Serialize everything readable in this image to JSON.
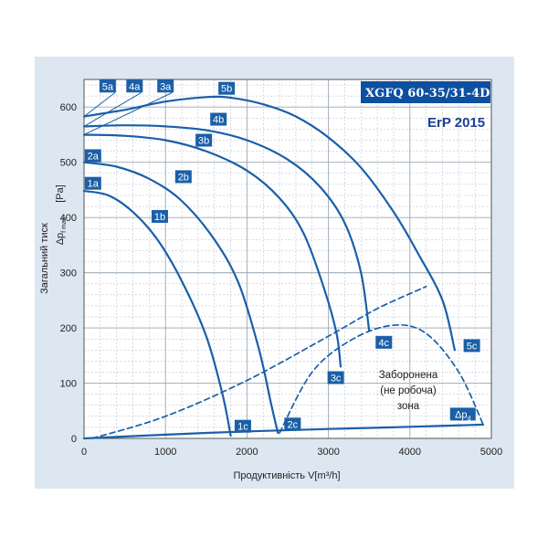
{
  "chart_data": {
    "type": "line",
    "title": "XGFQ 60-35/31-4D",
    "subtitle": "ErP 2015",
    "xlabel": "Продуктивність V[m³/h]",
    "ylabel": "Загальний тиск",
    "ylabel2": "[Pa]",
    "ylabel3_main": "Δp",
    "ylabel3_sub": "f max",
    "xlim": [
      0,
      5000
    ],
    "ylim": [
      0,
      650
    ],
    "x_ticks": [
      0,
      1000,
      2000,
      3000,
      4000,
      5000
    ],
    "y_ticks": [
      0,
      100,
      200,
      300,
      400,
      500,
      600
    ],
    "grid": true,
    "colors": {
      "curve": "#1a5fa8",
      "label_bg": "#1a5fa8",
      "title_bg": "#0d4fa0",
      "panel_bg": "#dde7f2",
      "grid": "#9aa7b5"
    },
    "series": [
      {
        "name": "1",
        "points": [
          [
            0,
            448
          ],
          [
            300,
            440
          ],
          [
            600,
            410
          ],
          [
            900,
            360
          ],
          [
            1200,
            285
          ],
          [
            1500,
            185
          ],
          [
            1700,
            80
          ],
          [
            1800,
            5
          ]
        ]
      },
      {
        "name": "2",
        "points": [
          [
            0,
            500
          ],
          [
            400,
            492
          ],
          [
            800,
            470
          ],
          [
            1200,
            430
          ],
          [
            1600,
            360
          ],
          [
            1900,
            280
          ],
          [
            2150,
            160
          ],
          [
            2300,
            60
          ],
          [
            2380,
            10
          ]
        ]
      },
      {
        "name": "3",
        "points": [
          [
            0,
            550
          ],
          [
            500,
            548
          ],
          [
            1000,
            540
          ],
          [
            1500,
            520
          ],
          [
            2000,
            485
          ],
          [
            2400,
            435
          ],
          [
            2700,
            370
          ],
          [
            2950,
            270
          ],
          [
            3100,
            190
          ],
          [
            3150,
            130
          ]
        ]
      },
      {
        "name": "4",
        "points": [
          [
            0,
            565
          ],
          [
            500,
            567
          ],
          [
            1000,
            565
          ],
          [
            1500,
            558
          ],
          [
            2000,
            540
          ],
          [
            2500,
            505
          ],
          [
            2900,
            455
          ],
          [
            3200,
            390
          ],
          [
            3400,
            300
          ],
          [
            3500,
            195
          ]
        ]
      },
      {
        "name": "5",
        "points": [
          [
            0,
            583
          ],
          [
            500,
            595
          ],
          [
            1000,
            610
          ],
          [
            1500,
            618
          ],
          [
            1800,
            617
          ],
          [
            2200,
            605
          ],
          [
            2600,
            583
          ],
          [
            3000,
            545
          ],
          [
            3400,
            490
          ],
          [
            3800,
            410
          ],
          [
            4100,
            335
          ],
          [
            4400,
            250
          ],
          [
            4550,
            160
          ]
        ]
      },
      {
        "name": "system_resistance",
        "points": [
          [
            100,
            0
          ],
          [
            1000,
            40
          ],
          [
            2000,
            105
          ],
          [
            3000,
            185
          ],
          [
            3600,
            235
          ],
          [
            4200,
            275
          ]
        ]
      },
      {
        "name": "forbidden_zone_boundary",
        "points": [
          [
            2400,
            10
          ],
          [
            2800,
            120
          ],
          [
            3300,
            180
          ],
          [
            3800,
            205
          ],
          [
            4200,
            190
          ],
          [
            4600,
            120
          ],
          [
            4900,
            25
          ]
        ]
      },
      {
        "name": "Δp_d",
        "points": [
          [
            0,
            0
          ],
          [
            1500,
            10
          ],
          [
            3000,
            17
          ],
          [
            4000,
            21
          ],
          [
            4900,
            25
          ]
        ]
      }
    ],
    "curve_labels": [
      {
        "text": "5a",
        "x": 290,
        "y": 638
      },
      {
        "text": "4a",
        "x": 620,
        "y": 638
      },
      {
        "text": "3a",
        "x": 1000,
        "y": 638
      },
      {
        "text": "5b",
        "x": 1750,
        "y": 634
      },
      {
        "text": "4b",
        "x": 1650,
        "y": 578
      },
      {
        "text": "3b",
        "x": 1470,
        "y": 540
      },
      {
        "text": "2a",
        "x": 110,
        "y": 512
      },
      {
        "text": "2b",
        "x": 1220,
        "y": 474
      },
      {
        "text": "1a",
        "x": 110,
        "y": 462
      },
      {
        "text": "1b",
        "x": 930,
        "y": 402
      },
      {
        "text": "4c",
        "x": 3680,
        "y": 174
      },
      {
        "text": "5c",
        "x": 4760,
        "y": 168
      },
      {
        "text": "3c",
        "x": 3090,
        "y": 110
      },
      {
        "text": "1c",
        "x": 1950,
        "y": 22
      },
      {
        "text": "2c",
        "x": 2560,
        "y": 26
      },
      {
        "text": "Δp",
        "sub": "d",
        "x": 4650,
        "y": 44
      }
    ],
    "annotation": [
      "Заборонена",
      "(не робоча)",
      "зона"
    ]
  }
}
